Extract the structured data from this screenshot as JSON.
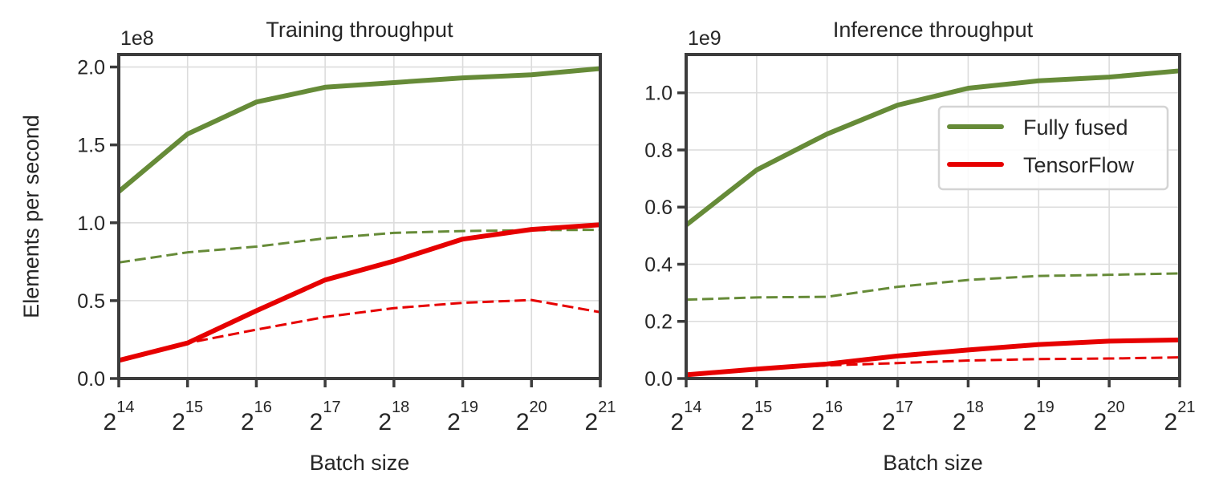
{
  "chart_data": [
    {
      "type": "line",
      "title": "Training throughput",
      "xlabel": "Batch size",
      "ylabel": "Elements per second",
      "offset_label": "1e8",
      "x_scale": "log2",
      "x": [
        14,
        15,
        16,
        17,
        18,
        19,
        20,
        21
      ],
      "x_tick_labels": [
        {
          "base": "2",
          "exp": "14"
        },
        {
          "base": "2",
          "exp": "15"
        },
        {
          "base": "2",
          "exp": "16"
        },
        {
          "base": "2",
          "exp": "17"
        },
        {
          "base": "2",
          "exp": "18"
        },
        {
          "base": "2",
          "exp": "19"
        },
        {
          "base": "2",
          "exp": "20"
        },
        {
          "base": "2",
          "exp": "21"
        }
      ],
      "y_ticks": [
        0.0,
        0.5,
        1.0,
        1.5,
        2.0
      ],
      "y_tick_labels": [
        "0.0",
        "0.5",
        "1.0",
        "1.5",
        "2.0"
      ],
      "ylim": [
        0,
        2.08
      ],
      "grid": true,
      "series": [
        {
          "color": "#668b38",
          "style": "solid",
          "values": [
            1.2,
            1.57,
            1.775,
            1.87,
            1.9,
            1.93,
            1.95,
            1.99
          ]
        },
        {
          "color": "#668b38",
          "style": "dashed",
          "values": [
            0.745,
            0.81,
            0.847,
            0.9,
            0.935,
            0.947,
            0.952,
            0.955
          ]
        },
        {
          "color": "#e60000",
          "style": "solid",
          "values": [
            0.116,
            0.228,
            0.435,
            0.633,
            0.754,
            0.895,
            0.957,
            0.987
          ]
        },
        {
          "color": "#e60000",
          "style": "dashed",
          "values": [
            0.116,
            0.228,
            0.314,
            0.395,
            0.452,
            0.486,
            0.504,
            0.426
          ]
        }
      ]
    },
    {
      "type": "line",
      "title": "Inference throughput",
      "xlabel": "Batch size",
      "ylabel": "",
      "offset_label": "1e9",
      "x_scale": "log2",
      "x": [
        14,
        15,
        16,
        17,
        18,
        19,
        20,
        21
      ],
      "x_tick_labels": [
        {
          "base": "2",
          "exp": "14"
        },
        {
          "base": "2",
          "exp": "15"
        },
        {
          "base": "2",
          "exp": "16"
        },
        {
          "base": "2",
          "exp": "17"
        },
        {
          "base": "2",
          "exp": "18"
        },
        {
          "base": "2",
          "exp": "19"
        },
        {
          "base": "2",
          "exp": "20"
        },
        {
          "base": "2",
          "exp": "21"
        }
      ],
      "y_ticks": [
        0.0,
        0.2,
        0.4,
        0.6,
        0.8,
        1.0
      ],
      "y_tick_labels": [
        "0.0",
        "0.2",
        "0.4",
        "0.6",
        "0.8",
        "1.0"
      ],
      "ylim": [
        0,
        1.134
      ],
      "grid": true,
      "legend": {
        "placement": "upper-right",
        "entries": [
          {
            "label": "Fully fused",
            "color": "#668b38"
          },
          {
            "label": "TensorFlow",
            "color": "#e60000"
          }
        ]
      },
      "series": [
        {
          "name": "Fully fused",
          "color": "#668b38",
          "style": "solid",
          "values": [
            0.537,
            0.73,
            0.856,
            0.957,
            1.016,
            1.042,
            1.055,
            1.077
          ]
        },
        {
          "color": "#668b38",
          "style": "dashed",
          "values": [
            0.276,
            0.284,
            0.286,
            0.321,
            0.345,
            0.359,
            0.363,
            0.368
          ]
        },
        {
          "name": "TensorFlow",
          "color": "#e60000",
          "style": "solid",
          "values": [
            0.013,
            0.033,
            0.051,
            0.079,
            0.1,
            0.119,
            0.131,
            0.135
          ]
        },
        {
          "color": "#e60000",
          "style": "dashed",
          "values": [
            0.013,
            0.033,
            0.046,
            0.054,
            0.063,
            0.068,
            0.07,
            0.074
          ]
        }
      ]
    }
  ]
}
